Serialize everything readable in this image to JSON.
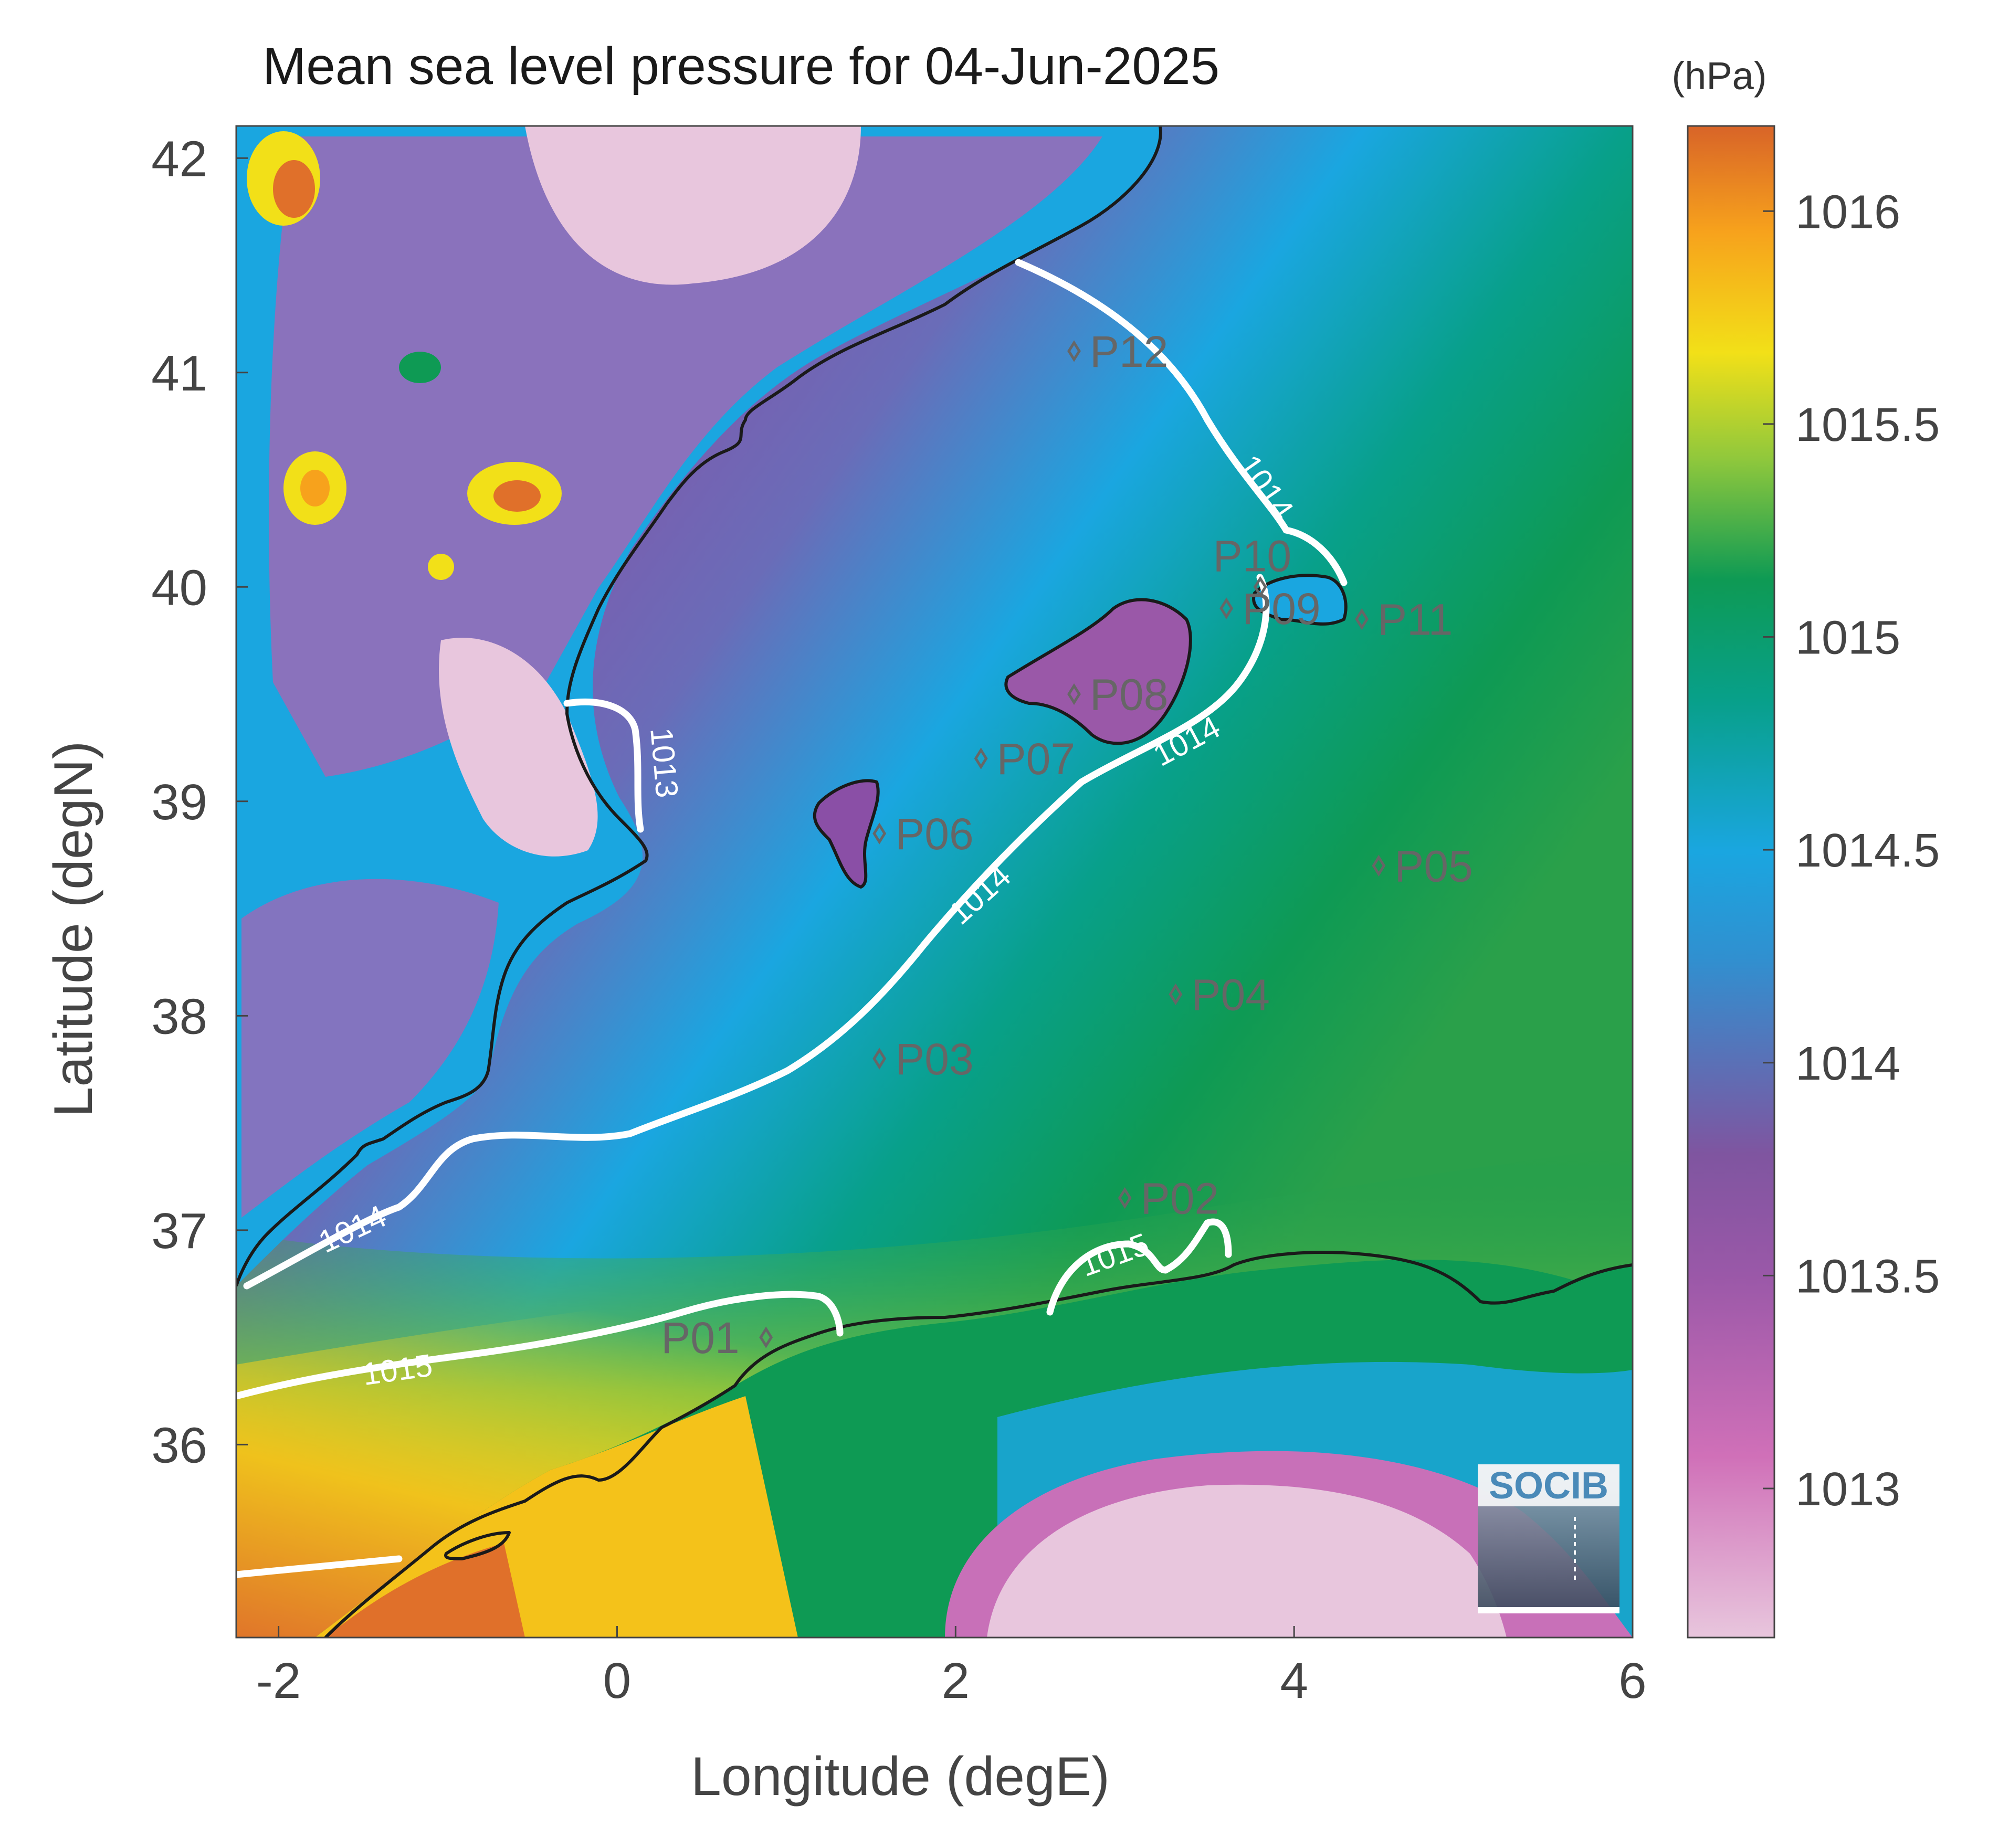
{
  "title": "Mean sea level pressure for 04-Jun-2025",
  "unit_label": "(hPa)",
  "xlabel": "Longitude (degE)",
  "ylabel": "Latitude (degN)",
  "x_ticks": [
    {
      "value": -2,
      "label": "-2"
    },
    {
      "value": 0,
      "label": "0"
    },
    {
      "value": 2,
      "label": "2"
    },
    {
      "value": 4,
      "label": "4"
    },
    {
      "value": 6,
      "label": "6"
    }
  ],
  "y_ticks": [
    {
      "value": 42,
      "label": "42"
    },
    {
      "value": 41,
      "label": "41"
    },
    {
      "value": 40,
      "label": "40"
    },
    {
      "value": 39,
      "label": "39"
    },
    {
      "value": 38,
      "label": "38"
    },
    {
      "value": 37,
      "label": "37"
    },
    {
      "value": 36,
      "label": "36"
    }
  ],
  "colorbar": {
    "range": [
      1012.65,
      1016.2
    ],
    "ticks": [
      {
        "value": 1016,
        "label": "1016"
      },
      {
        "value": 1015.5,
        "label": "1015.5"
      },
      {
        "value": 1015,
        "label": "1015"
      },
      {
        "value": 1014.5,
        "label": "1014.5"
      },
      {
        "value": 1014,
        "label": "1014"
      },
      {
        "value": 1013.5,
        "label": "1013.5"
      },
      {
        "value": 1013,
        "label": "1013"
      }
    ],
    "colormap": [
      "#e8c6dd",
      "#d070b8",
      "#7f55a0",
      "#1aa6e0",
      "#08a08a",
      "#0e9a54",
      "#90c83c",
      "#f2e018",
      "#f7a21c",
      "#d86428"
    ]
  },
  "points": [
    {
      "label": "P01",
      "lon": 0.88,
      "lat": 36.5
    },
    {
      "label": "P02",
      "lon": 3.0,
      "lat": 37.15
    },
    {
      "label": "P03",
      "lon": 1.55,
      "lat": 37.8
    },
    {
      "label": "P04",
      "lon": 3.3,
      "lat": 38.1
    },
    {
      "label": "P05",
      "lon": 4.5,
      "lat": 38.7
    },
    {
      "label": "P06",
      "lon": 1.55,
      "lat": 38.85
    },
    {
      "label": "P07",
      "lon": 2.15,
      "lat": 39.2
    },
    {
      "label": "P08",
      "lon": 2.7,
      "lat": 39.5
    },
    {
      "label": "P09",
      "lon": 3.6,
      "lat": 39.9
    },
    {
      "label": "P10",
      "lon": 3.8,
      "lat": 40.0
    },
    {
      "label": "P11",
      "lon": 4.4,
      "lat": 39.85
    },
    {
      "label": "P12",
      "lon": 2.7,
      "lat": 41.1
    }
  ],
  "contour_labels": [
    {
      "text": "1013"
    },
    {
      "text": "1014"
    },
    {
      "text": "1015"
    }
  ],
  "logo": {
    "text": "SOCIB"
  },
  "colors": {
    "coastline": "#1a1a1a",
    "contour": "#ffffff",
    "marker": "#666666",
    "axis_text": "#444444"
  }
}
